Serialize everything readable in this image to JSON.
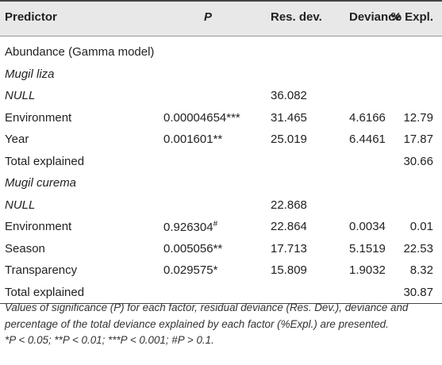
{
  "header": {
    "predictor": "Predictor",
    "p": "P",
    "res_dev": "Res. dev.",
    "deviance": "Deviance",
    "pct_expl": "% Expl."
  },
  "rows": [
    {
      "predictor": "Abundance (Gamma model)",
      "p": "",
      "res_dev": "",
      "deviance": "",
      "pct": ""
    },
    {
      "predictor": "Mugil liza",
      "p": "",
      "res_dev": "",
      "deviance": "",
      "pct": ""
    },
    {
      "predictor": "NULL",
      "p": "",
      "res_dev": "36.082",
      "deviance": "",
      "pct": ""
    },
    {
      "predictor": "Environment",
      "p": "0.00004654***",
      "res_dev": "31.465",
      "deviance": "4.6166",
      "pct": "12.79"
    },
    {
      "predictor": "Year",
      "p": "0.001601**",
      "res_dev": "25.019",
      "deviance": "6.4461",
      "pct": "17.87"
    },
    {
      "predictor": "Total explained",
      "p": "",
      "res_dev": "",
      "deviance": "",
      "pct": "30.66"
    },
    {
      "predictor": "Mugil curema",
      "p": "",
      "res_dev": "",
      "deviance": "",
      "pct": ""
    },
    {
      "predictor": "NULL",
      "p": "",
      "res_dev": "22.868",
      "deviance": "",
      "pct": ""
    },
    {
      "predictor": "Environment",
      "p": "0.926304",
      "p_sup": "#",
      "res_dev": "22.864",
      "deviance": "0.0034",
      "pct": "0.01"
    },
    {
      "predictor": "Season",
      "p": "0.005056**",
      "res_dev": "17.713",
      "deviance": "5.1519",
      "pct": "22.53"
    },
    {
      "predictor": "Transparency",
      "p": "0.029575*",
      "res_dev": "15.809",
      "deviance": "1.9032",
      "pct": "8.32"
    },
    {
      "predictor": "Total explained",
      "p": "",
      "res_dev": "",
      "deviance": "",
      "pct": "30.87"
    }
  ],
  "footnote": {
    "line1": "Values of significance (P) for each factor, residual deviance (Res. Dev.), deviance and",
    "line2": "percentage of the total deviance explained by each factor (%Expl.) are presented.",
    "line3": "*P < 0.05; **P < 0.01; ***P < 0.001; #P > 0.1."
  }
}
